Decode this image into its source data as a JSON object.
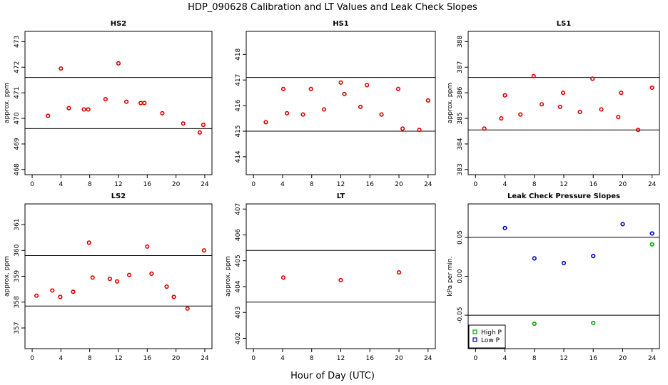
{
  "title": "HDP_090628  Calibration and LT Values and Leak Check Slopes",
  "xlabel": "Hour of Day (UTC)",
  "chart_data": [
    {
      "type": "scatter",
      "title": "HS2",
      "ylabel": "approx. ppm",
      "xlim": [
        -1,
        25
      ],
      "ylim": [
        467.8,
        473.4
      ],
      "xticks": [
        0,
        4,
        8,
        12,
        16,
        20,
        24
      ],
      "yticks": [
        468,
        469,
        470,
        471,
        472,
        473
      ],
      "hlines": [
        471.6,
        469.6
      ],
      "series": [
        {
          "color": "#dd0000",
          "marker": "circle",
          "x": [
            2.2,
            4.0,
            5.1,
            7.2,
            7.8,
            10.2,
            12.0,
            13.1,
            15.1,
            15.6,
            18.1,
            21.0,
            23.3,
            23.8
          ],
          "y": [
            470.1,
            471.95,
            470.4,
            470.35,
            470.35,
            470.75,
            472.15,
            470.65,
            470.6,
            470.6,
            470.2,
            469.8,
            469.45,
            469.75
          ]
        }
      ]
    },
    {
      "type": "scatter",
      "title": "HS1",
      "ylabel": "",
      "xlim": [
        -1,
        25
      ],
      "ylim": [
        413.3,
        418.9
      ],
      "xticks": [
        0,
        4,
        8,
        12,
        16,
        20,
        24
      ],
      "yticks": [
        414,
        415,
        416,
        417,
        418
      ],
      "hlines": [
        417.1,
        415.0
      ],
      "series": [
        {
          "color": "#dd0000",
          "marker": "circle",
          "x": [
            1.7,
            4.1,
            4.6,
            6.8,
            7.9,
            9.7,
            12.0,
            12.5,
            14.7,
            15.6,
            17.6,
            19.9,
            20.5,
            22.8,
            24.0
          ],
          "y": [
            415.35,
            416.65,
            415.7,
            415.65,
            416.65,
            415.85,
            416.9,
            416.45,
            415.95,
            416.8,
            415.65,
            416.65,
            415.1,
            415.05,
            416.2
          ]
        }
      ]
    },
    {
      "type": "scatter",
      "title": "LS1",
      "ylabel": "approx. ppm",
      "xlim": [
        -1,
        25
      ],
      "ylim": [
        382.8,
        388.4
      ],
      "xticks": [
        0,
        4,
        8,
        12,
        16,
        20,
        24
      ],
      "yticks": [
        383,
        384,
        385,
        386,
        387,
        388
      ],
      "hlines": [
        386.6,
        384.55
      ],
      "series": [
        {
          "color": "#dd0000",
          "marker": "circle",
          "x": [
            1.2,
            3.5,
            4.0,
            6.1,
            7.9,
            9.0,
            11.5,
            11.9,
            14.2,
            15.9,
            17.1,
            19.4,
            19.8,
            22.1,
            24.0
          ],
          "y": [
            384.6,
            385.0,
            385.9,
            385.15,
            386.65,
            385.55,
            385.45,
            386.0,
            385.25,
            386.55,
            385.35,
            385.05,
            386.0,
            384.55,
            386.2
          ]
        }
      ]
    },
    {
      "type": "scatter",
      "title": "LS2",
      "ylabel": "approx. ppm",
      "xlim": [
        -1,
        25
      ],
      "ylim": [
        356.2,
        361.8
      ],
      "xticks": [
        0,
        4,
        8,
        12,
        16,
        20,
        24
      ],
      "yticks": [
        357,
        358,
        359,
        360,
        361
      ],
      "hlines": [
        359.8,
        357.85
      ],
      "series": [
        {
          "color": "#dd0000",
          "marker": "circle",
          "x": [
            0.6,
            2.8,
            3.9,
            5.7,
            7.9,
            8.4,
            10.8,
            11.8,
            13.5,
            16.0,
            16.6,
            18.7,
            19.7,
            21.6,
            23.9
          ],
          "y": [
            358.25,
            358.45,
            358.2,
            358.4,
            360.3,
            358.95,
            358.9,
            358.8,
            359.05,
            360.15,
            359.1,
            358.6,
            358.2,
            357.75,
            360.0
          ]
        }
      ]
    },
    {
      "type": "scatter",
      "title": "LT",
      "ylabel": "approx. ppm",
      "xlim": [
        -1,
        25
      ],
      "ylim": [
        401.6,
        407.2
      ],
      "xticks": [
        0,
        4,
        8,
        12,
        16,
        20,
        24
      ],
      "yticks": [
        402,
        403,
        404,
        405,
        406,
        407
      ],
      "hlines": [
        405.4,
        403.4
      ],
      "series": [
        {
          "color": "#dd0000",
          "marker": "circle",
          "x": [
            4.1,
            12.0,
            20.0
          ],
          "y": [
            404.35,
            404.25,
            404.55
          ]
        }
      ]
    },
    {
      "type": "scatter",
      "title": "Leak Check Pressure Slopes",
      "ylabel": "kPa per min.",
      "xlim": [
        -1,
        25
      ],
      "ylim": [
        -0.093,
        0.093
      ],
      "xticks": [
        0,
        4,
        8,
        12,
        16,
        20,
        24
      ],
      "yticks": [
        -0.05,
        0.0,
        0.05
      ],
      "ytick_labels": [
        "-0.05",
        "0.00",
        "0.05"
      ],
      "hlines": [
        0.05,
        -0.05
      ],
      "series": [
        {
          "name": "High P",
          "color": "#00aa00",
          "marker": "circle",
          "x": [
            8.0,
            16.0,
            24.0
          ],
          "y": [
            -0.061,
            -0.06,
            0.041
          ]
        },
        {
          "name": "Low P",
          "color": "#0000cc",
          "marker": "circle",
          "x": [
            4.0,
            8.0,
            12.0,
            16.0,
            20.0,
            24.0
          ],
          "y": [
            0.062,
            0.023,
            0.017,
            0.026,
            0.067,
            0.055
          ]
        }
      ],
      "legend": "bottom-left"
    }
  ]
}
